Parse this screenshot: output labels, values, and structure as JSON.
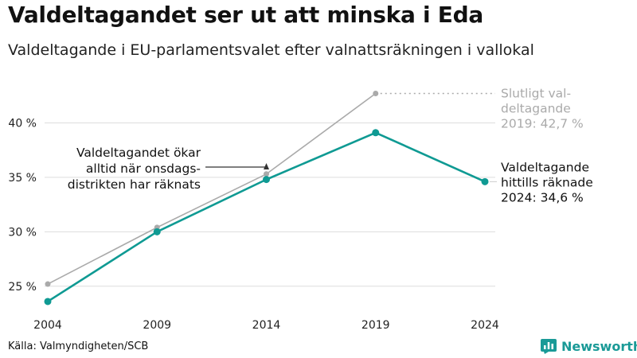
{
  "title": "Valdeltagandet ser ut att minska i Eda",
  "subtitle": "Valdeltagande i EU-parlamentsvalet efter valnattsräkningen i vallokal",
  "source": "Källa: Valmyndigheten/SCB",
  "brand": {
    "name": "Newsworthy",
    "icon": "bar-chart-logo-icon",
    "color": "#1a9a97"
  },
  "colors": {
    "teal": "#0f9a93",
    "gray": "#aaaaaa",
    "grid": "#dddddd"
  },
  "chart_data": {
    "type": "line",
    "x": [
      2004,
      2009,
      2014,
      2019,
      2024
    ],
    "x_tick_labels": [
      "2004",
      "2009",
      "2014",
      "2019",
      "2024"
    ],
    "y_ticks": [
      25,
      30,
      35,
      40
    ],
    "y_tick_labels": [
      "25 %",
      "30 %",
      "35 %",
      "40 %"
    ],
    "ylim": [
      22.5,
      45
    ],
    "grid": true,
    "series": [
      {
        "key": "final",
        "color": "#aaaaaa",
        "x": [
          2004,
          2009,
          2014,
          2019
        ],
        "values": [
          25.2,
          30.4,
          35.3,
          42.7
        ]
      },
      {
        "key": "prelim",
        "color": "#0f9a93",
        "x": [
          2004,
          2009,
          2014,
          2019,
          2024
        ],
        "values": [
          23.6,
          30.0,
          34.8,
          39.1,
          34.6
        ]
      }
    ],
    "annotations": {
      "final": [
        "Slutligt val-",
        "deltagande",
        "2019: 42,7 %"
      ],
      "prelim": [
        "Valdeltagande",
        "hittills räknade",
        "2024: 34,6 %"
      ],
      "note": [
        "Valdeltagandet ökar",
        "alltid när onsdags-",
        "distrikten har räknats"
      ]
    }
  }
}
